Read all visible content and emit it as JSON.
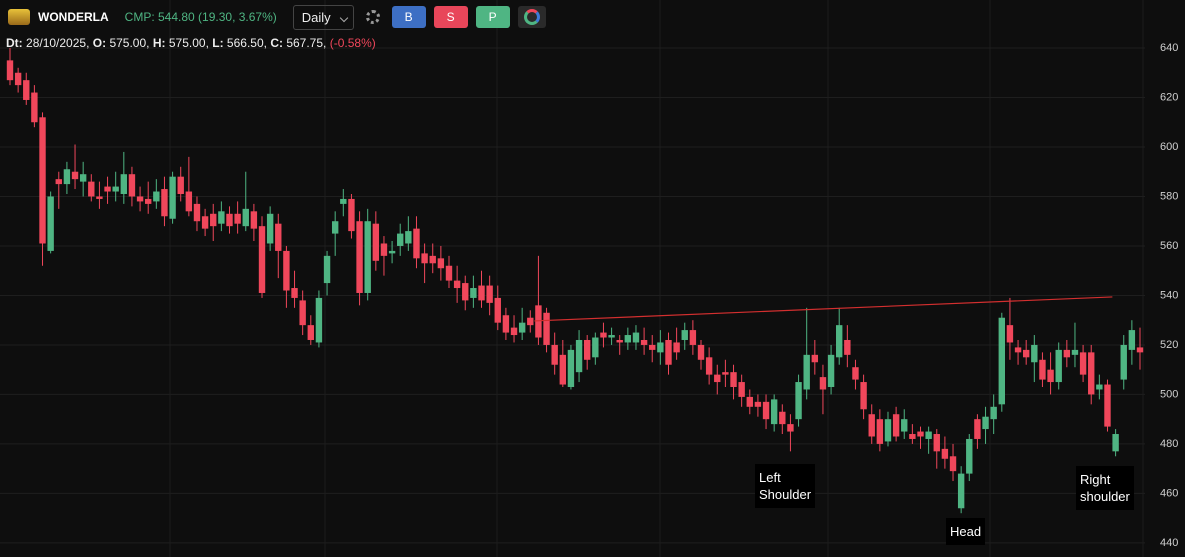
{
  "header": {
    "symbol": "WONDERLA",
    "cmp": "CMP: 544.80 (19.30, 3.67%)",
    "interval": "Daily",
    "buttons": [
      "B",
      "S",
      "P"
    ],
    "info": [
      {
        "label": "Dt:",
        "value": "28/10/2025,"
      },
      {
        "label": "O:",
        "value": "575.00,"
      },
      {
        "label": "H:",
        "value": "575.00,"
      },
      {
        "label": "L:",
        "value": "566.50,"
      },
      {
        "label": "C:",
        "value": "567.75,"
      }
    ],
    "change": "(-0.58%)"
  },
  "chart_data": {
    "type": "candlestick",
    "up_color": "#4fb583",
    "down_color": "#f0475b",
    "ylim": [
      434.3,
      659.4
    ],
    "yticks": [
      440,
      460,
      480,
      500,
      520,
      540,
      560,
      580,
      600,
      620,
      640
    ],
    "grid": true,
    "ohlc": [
      [
        635,
        640,
        625,
        627
      ],
      [
        630,
        632,
        622,
        625
      ],
      [
        627,
        630,
        617,
        619
      ],
      [
        622,
        625,
        608,
        610
      ],
      [
        612,
        614,
        552,
        561
      ],
      [
        558,
        582,
        557,
        580
      ],
      [
        587,
        590,
        575,
        585
      ],
      [
        585,
        594,
        581,
        591
      ],
      [
        590,
        601,
        583,
        587
      ],
      [
        586,
        594,
        580,
        589
      ],
      [
        586,
        589,
        578,
        580
      ],
      [
        580,
        586,
        575,
        579
      ],
      [
        584,
        588,
        577,
        582
      ],
      [
        582,
        590,
        578,
        584
      ],
      [
        581,
        598,
        577,
        589
      ],
      [
        589,
        592,
        576,
        580
      ],
      [
        580,
        584,
        574,
        578
      ],
      [
        579,
        586,
        573,
        577
      ],
      [
        578,
        587,
        575,
        582
      ],
      [
        583,
        588,
        568,
        572
      ],
      [
        571,
        590,
        569,
        588
      ],
      [
        588,
        592,
        578,
        581
      ],
      [
        582,
        596,
        572,
        574
      ],
      [
        577,
        580,
        566,
        570
      ],
      [
        572,
        575,
        564,
        567
      ],
      [
        573,
        577,
        562,
        568
      ],
      [
        569,
        578,
        566,
        574
      ],
      [
        573,
        576,
        565,
        568
      ],
      [
        573,
        578,
        565,
        569
      ],
      [
        568,
        590,
        566,
        575
      ],
      [
        574,
        577,
        562,
        567
      ],
      [
        568,
        572,
        539,
        541
      ],
      [
        561,
        576,
        558,
        573
      ],
      [
        569,
        573,
        547,
        558
      ],
      [
        558,
        560,
        535,
        542
      ],
      [
        543,
        550,
        535,
        539
      ],
      [
        538,
        542,
        524,
        528
      ],
      [
        528,
        532,
        520,
        522
      ],
      [
        521,
        542,
        519,
        539
      ],
      [
        545,
        558,
        540,
        556
      ],
      [
        565,
        574,
        556,
        570
      ],
      [
        577,
        583,
        572,
        579
      ],
      [
        579,
        581,
        563,
        566
      ],
      [
        570,
        574,
        536,
        541
      ],
      [
        541,
        575,
        538,
        570
      ],
      [
        569,
        574,
        550,
        554
      ],
      [
        561,
        564,
        548,
        556
      ],
      [
        557,
        562,
        553,
        558
      ],
      [
        560,
        569,
        556,
        565
      ],
      [
        561,
        572,
        558,
        566
      ],
      [
        567,
        572,
        551,
        555
      ],
      [
        557,
        561,
        545,
        553
      ],
      [
        556,
        561,
        549,
        553
      ],
      [
        555,
        560,
        546,
        551
      ],
      [
        552,
        556,
        543,
        546
      ],
      [
        546,
        552,
        537,
        543
      ],
      [
        545,
        548,
        534,
        538
      ],
      [
        539,
        548,
        535,
        543
      ],
      [
        544,
        550,
        535,
        538
      ],
      [
        544,
        548,
        532,
        537
      ],
      [
        539,
        544,
        526,
        529
      ],
      [
        532,
        535,
        522,
        525
      ],
      [
        527,
        532,
        521,
        524
      ],
      [
        525,
        535,
        522,
        529
      ],
      [
        531,
        534,
        525,
        528
      ],
      [
        536,
        556,
        520,
        523
      ],
      [
        533,
        535,
        517,
        520
      ],
      [
        520,
        525,
        508,
        512
      ],
      [
        516,
        522,
        503,
        504
      ],
      [
        503,
        520,
        502,
        518
      ],
      [
        509,
        526,
        505,
        522
      ],
      [
        522,
        524,
        510,
        514
      ],
      [
        515,
        525,
        512,
        523
      ],
      [
        525,
        529,
        519,
        523
      ],
      [
        523,
        527,
        520,
        524
      ],
      [
        522,
        524,
        516,
        521
      ],
      [
        521,
        527,
        518,
        524
      ],
      [
        521,
        528,
        518,
        525
      ],
      [
        522,
        527,
        516,
        520
      ],
      [
        520,
        524,
        513,
        518
      ],
      [
        517,
        526,
        512,
        521
      ],
      [
        522,
        525,
        508,
        512
      ],
      [
        521,
        527,
        514,
        517
      ],
      [
        522,
        529,
        518,
        526
      ],
      [
        526,
        530,
        516,
        520
      ],
      [
        520,
        522,
        510,
        514
      ],
      [
        515,
        519,
        504,
        508
      ],
      [
        508,
        512,
        500,
        505
      ],
      [
        509,
        514,
        503,
        508
      ],
      [
        509,
        512,
        498,
        503
      ],
      [
        505,
        508,
        495,
        499
      ],
      [
        499,
        502,
        492,
        495
      ],
      [
        497,
        500,
        491,
        495
      ],
      [
        497,
        500,
        486,
        490
      ],
      [
        488,
        500,
        485,
        498
      ],
      [
        493,
        496,
        484,
        488
      ],
      [
        488,
        492,
        477,
        485
      ],
      [
        490,
        508,
        487,
        505
      ],
      [
        502,
        535,
        498,
        516
      ],
      [
        516,
        522,
        508,
        513
      ],
      [
        507,
        512,
        492,
        502
      ],
      [
        503,
        520,
        500,
        516
      ],
      [
        515,
        535,
        512,
        528
      ],
      [
        522,
        528,
        511,
        516
      ],
      [
        511,
        514,
        502,
        506
      ],
      [
        505,
        508,
        490,
        494
      ],
      [
        492,
        496,
        480,
        483
      ],
      [
        490,
        494,
        477,
        480
      ],
      [
        481,
        493,
        479,
        490
      ],
      [
        492,
        495,
        481,
        483
      ],
      [
        485,
        494,
        482,
        490
      ],
      [
        484,
        488,
        480,
        482
      ],
      [
        485,
        487,
        478,
        483
      ],
      [
        482,
        487,
        476,
        485
      ],
      [
        484,
        486,
        470,
        477
      ],
      [
        478,
        483,
        470,
        474
      ],
      [
        475,
        480,
        465,
        469
      ],
      [
        454,
        471,
        452,
        468
      ],
      [
        468,
        484,
        465,
        482
      ],
      [
        490,
        492,
        478,
        482
      ],
      [
        486,
        495,
        480,
        491
      ],
      [
        490,
        500,
        484,
        495
      ],
      [
        496,
        533,
        493,
        531
      ],
      [
        528,
        539,
        514,
        521
      ],
      [
        519,
        522,
        512,
        517
      ],
      [
        518,
        522,
        512,
        515
      ],
      [
        513,
        524,
        505,
        520
      ],
      [
        514,
        517,
        503,
        506
      ],
      [
        510,
        517,
        500,
        505
      ],
      [
        505,
        521,
        502,
        518
      ],
      [
        518,
        522,
        511,
        515
      ],
      [
        516,
        529,
        511,
        518
      ],
      [
        517,
        520,
        505,
        508
      ],
      [
        517,
        520,
        496,
        500
      ],
      [
        502,
        508,
        498,
        504
      ],
      [
        504,
        506,
        485,
        487
      ],
      [
        477,
        486,
        475,
        484
      ],
      [
        506,
        524,
        502,
        520
      ],
      [
        518,
        530,
        512,
        526
      ],
      [
        519,
        527,
        510,
        517
      ]
    ],
    "trendline": {
      "start": [
        64.5,
        529.7
      ],
      "end": [
        135.6,
        539.4
      ],
      "color": "#d32f2f"
    },
    "annotations": [
      {
        "lines": [
          "Left",
          "Shoulder"
        ]
      },
      {
        "lines": [
          "Head"
        ]
      },
      {
        "lines": [
          "Right",
          "shoulder"
        ]
      }
    ]
  }
}
